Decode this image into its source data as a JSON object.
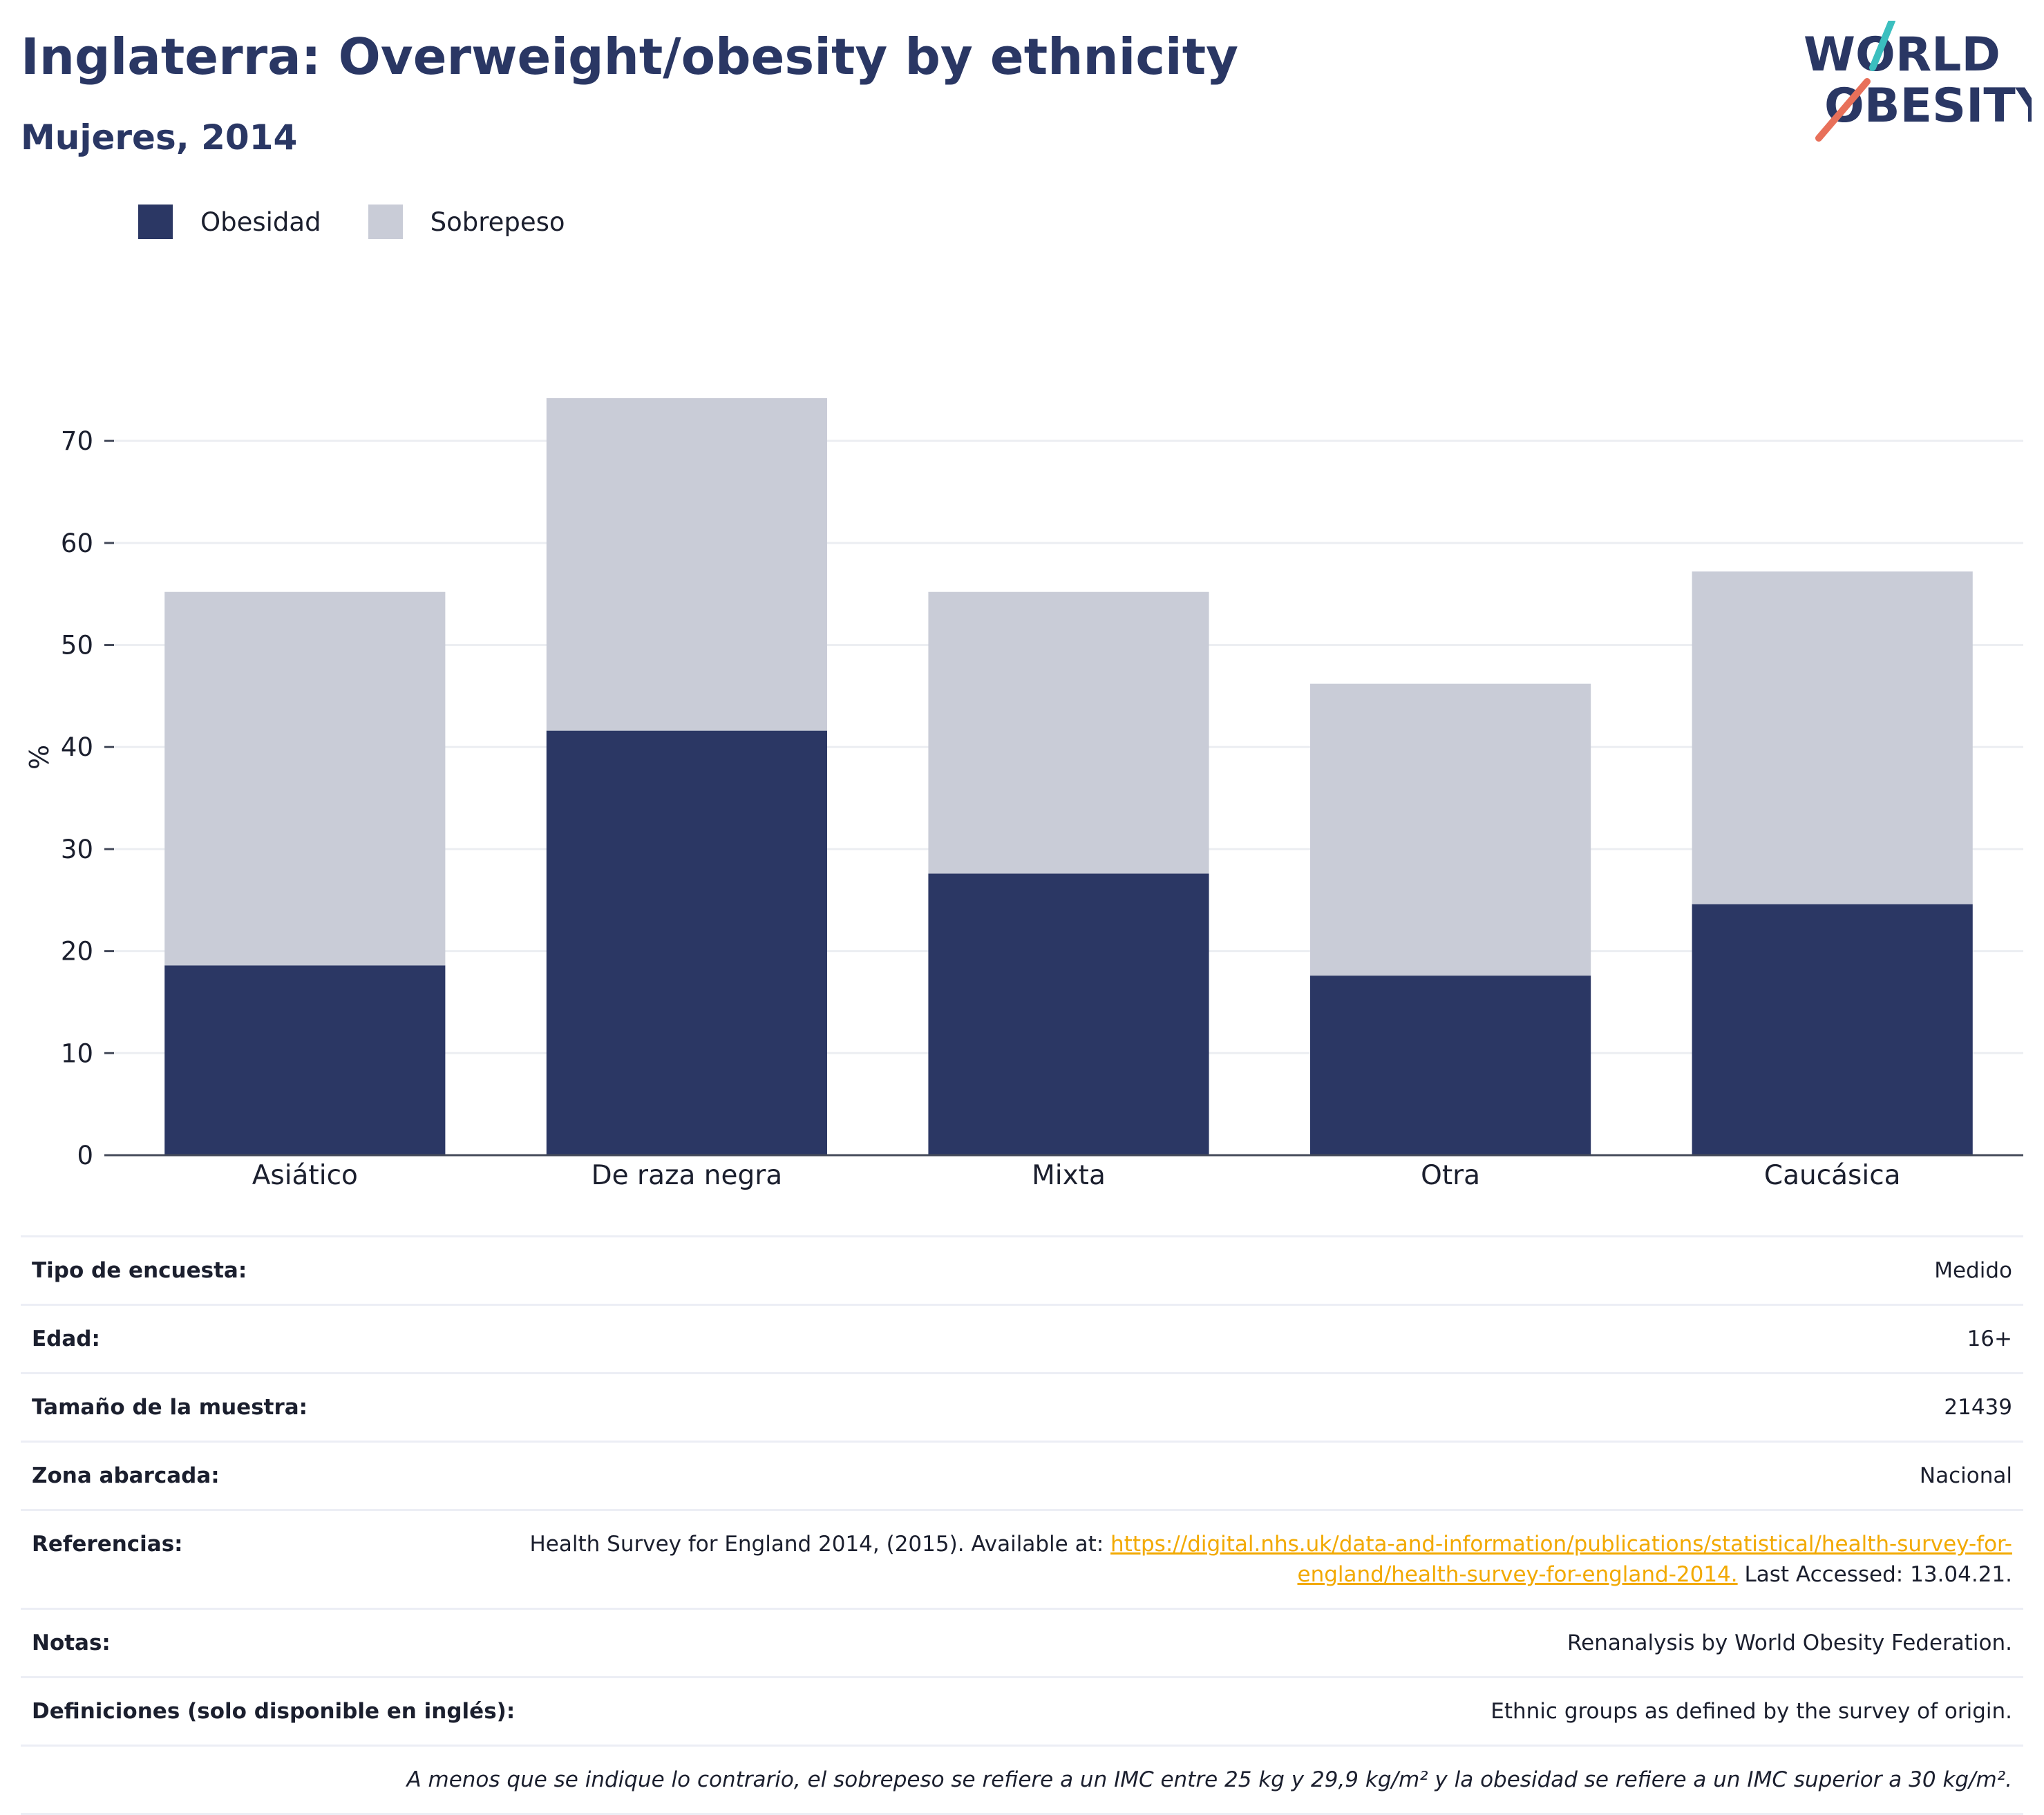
{
  "header": {
    "title": "Inglaterra: Overweight/obesity by ethnicity",
    "subtitle": "Mujeres, 2014"
  },
  "logo": {
    "line1": "WORLD",
    "line2": "OBESITY",
    "accent_teal": "#3bbfbf",
    "accent_coral": "#e8705a"
  },
  "colors": {
    "obesity": "#2b3764",
    "overweight": "#c9ccd7",
    "title": "#2a3764",
    "link": "#f2a900"
  },
  "legend": {
    "items": [
      {
        "label": "Obesidad",
        "color": "#2b3764"
      },
      {
        "label": "Sobrepeso",
        "color": "#c9ccd7"
      }
    ]
  },
  "chart_data": {
    "type": "bar",
    "stacked": true,
    "categories": [
      "Asiático",
      "De raza negra",
      "Mixta",
      "Otra",
      "Caucásica"
    ],
    "series": [
      {
        "name": "Obesidad",
        "values": [
          18.6,
          41.6,
          27.6,
          17.6,
          24.6
        ],
        "color": "#2b3764"
      },
      {
        "name": "Sobrepeso",
        "values": [
          36.6,
          32.6,
          27.6,
          28.6,
          32.6
        ],
        "color": "#c9ccd7"
      }
    ],
    "ylabel": "%",
    "ylim": [
      0,
      78
    ],
    "yticks": [
      0,
      10,
      20,
      30,
      40,
      50,
      60,
      70
    ],
    "grid": true,
    "legend_position": "top-left"
  },
  "meta": {
    "rows": [
      {
        "label": "Tipo de encuesta:",
        "value": "Medido"
      },
      {
        "label": "Edad:",
        "value": "16+"
      },
      {
        "label": "Tamaño de la muestra:",
        "value": "21439"
      },
      {
        "label": "Zona abarcada:",
        "value": "Nacional"
      }
    ],
    "references": {
      "label": "Referencias:",
      "prefix": "Health Survey for England 2014, (2015). Available at: ",
      "link": "https://digital.nhs.uk/data-and-information/publications/statistical/health-survey-for-england/health-survey-for-england-2014.",
      "suffix": " Last Accessed: 13.04.21."
    },
    "notes": {
      "label": "Notas:",
      "value": "Renanalysis by World Obesity Federation."
    },
    "definitions": {
      "label": "Definiciones (solo disponible en inglés):",
      "value": "Ethnic groups as defined by the survey of origin."
    },
    "footnote": "A menos que se indique lo contrario, el sobrepeso se refiere a un IMC entre 25 kg y 29,9 kg/m² y la obesidad se refiere a un IMC superior a 30 kg/m²."
  }
}
